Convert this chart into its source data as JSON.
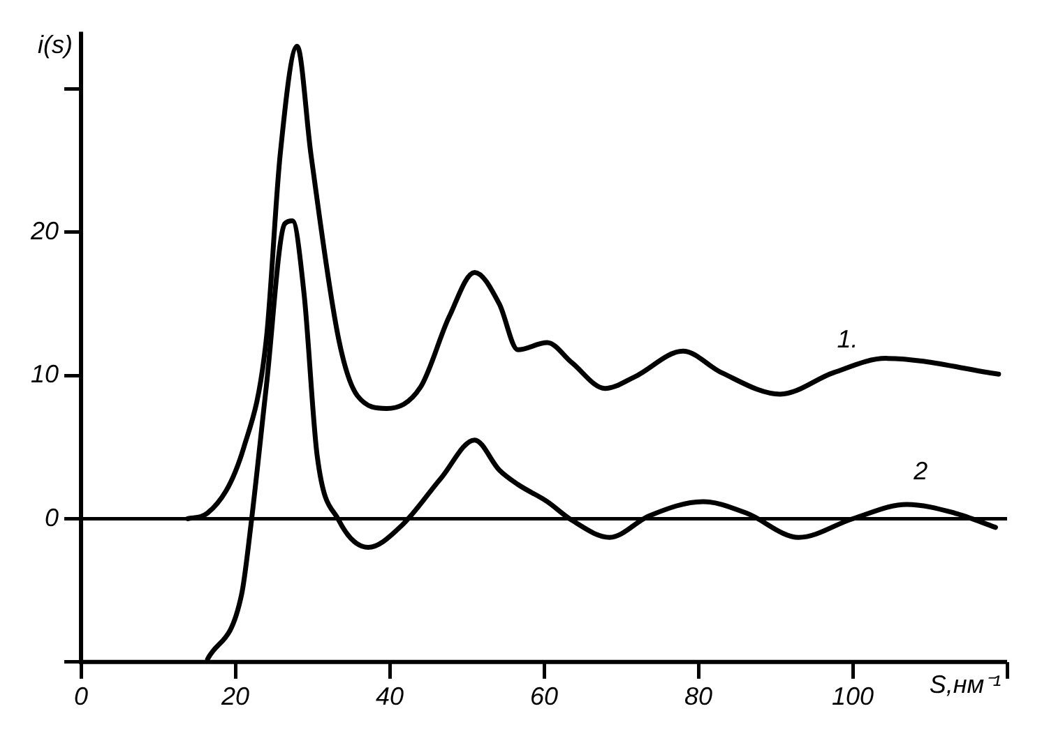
{
  "chart_data": {
    "type": "line",
    "xlabel": "S,нм⁻¹",
    "ylabel": "i(s)",
    "xlim": [
      0,
      120
    ],
    "xticks": [
      0,
      20,
      40,
      60,
      80,
      100,
      {
        "value": 120,
        "label": null
      }
    ],
    "ylim": [
      -10,
      34
    ],
    "yticks": [
      {
        "value": -10,
        "label": null
      },
      0,
      10,
      20,
      {
        "value": 30,
        "label": null
      }
    ],
    "grid": false,
    "legend": false,
    "marker": "none",
    "line_style": "solid",
    "ref_lines": [
      {
        "axis": "y",
        "value": 0,
        "color": "#000000"
      }
    ],
    "series": [
      {
        "name": "1.",
        "color": "#000000",
        "x": [
          13.8,
          16.4,
          21.1,
          24,
          25.8,
          28,
          29.8,
          33.4,
          35.8,
          39.6,
          44,
          47.7,
          51,
          54.2,
          56.6,
          60.4,
          63.6,
          67.9,
          71.7,
          78,
          83,
          90.6,
          97.5,
          104.3,
          118.9
        ],
        "values": [
          0,
          0.4,
          5,
          12.5,
          25.4,
          33,
          25.4,
          12.5,
          8.6,
          7.7,
          9.2,
          14.1,
          17.2,
          15,
          11.8,
          12.3,
          10.9,
          9.1,
          9.9,
          11.7,
          10.2,
          8.7,
          10.2,
          11.2,
          10.1
        ]
      },
      {
        "name": "2",
        "color": "#000000",
        "x": [
          16.4,
          20.8,
          22,
          24,
          26.4,
          27.4,
          28.9,
          30.6,
          33.4,
          37.2,
          41.5,
          46.6,
          51,
          54.2,
          56.6,
          60.4,
          63.6,
          68.5,
          73.6,
          80.6,
          86.2,
          93,
          100,
          107,
          113.2,
          118.5
        ],
        "values": [
          -9.8,
          -5.3,
          -0.5,
          9.2,
          20.6,
          20.8,
          15.7,
          4.4,
          -0.1,
          -2,
          -0.5,
          2.8,
          5.5,
          3.4,
          2.4,
          1.2,
          -0.1,
          -1.3,
          0.2,
          1.2,
          0.4,
          -1.3,
          0,
          1,
          0.4,
          -0.6
        ]
      }
    ]
  }
}
